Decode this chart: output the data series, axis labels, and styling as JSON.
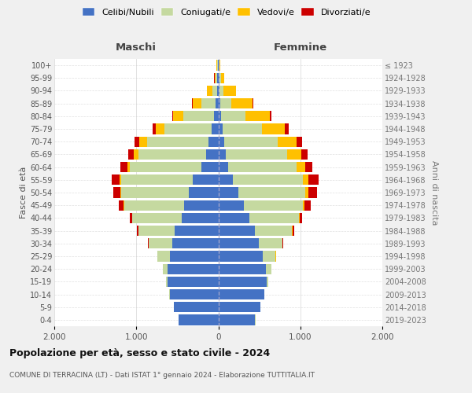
{
  "age_groups": [
    "0-4",
    "5-9",
    "10-14",
    "15-19",
    "20-24",
    "25-29",
    "30-34",
    "35-39",
    "40-44",
    "45-49",
    "50-54",
    "55-59",
    "60-64",
    "65-69",
    "70-74",
    "75-79",
    "80-84",
    "85-89",
    "90-94",
    "95-99",
    "100+"
  ],
  "birth_years": [
    "2019-2023",
    "2014-2018",
    "2009-2013",
    "2004-2008",
    "1999-2003",
    "1994-1998",
    "1989-1993",
    "1984-1988",
    "1979-1983",
    "1974-1978",
    "1969-1973",
    "1964-1968",
    "1959-1963",
    "1954-1958",
    "1949-1953",
    "1944-1948",
    "1939-1943",
    "1934-1938",
    "1929-1933",
    "1924-1928",
    "≤ 1923"
  ],
  "male": {
    "celibi": [
      480,
      540,
      590,
      620,
      620,
      590,
      560,
      530,
      450,
      420,
      360,
      310,
      210,
      150,
      120,
      80,
      50,
      30,
      15,
      10,
      5
    ],
    "coniugati": [
      1,
      2,
      5,
      20,
      60,
      150,
      290,
      440,
      600,
      730,
      820,
      870,
      870,
      820,
      750,
      580,
      380,
      180,
      60,
      20,
      10
    ],
    "vedovi": [
      0,
      0,
      0,
      0,
      0,
      1,
      1,
      2,
      3,
      5,
      10,
      20,
      30,
      60,
      90,
      100,
      120,
      100,
      60,
      15,
      5
    ],
    "divorziati": [
      0,
      0,
      0,
      0,
      1,
      2,
      5,
      20,
      30,
      60,
      90,
      100,
      80,
      70,
      60,
      40,
      15,
      8,
      5,
      3,
      2
    ]
  },
  "female": {
    "nubili": [
      450,
      510,
      560,
      590,
      580,
      540,
      490,
      450,
      380,
      310,
      240,
      180,
      120,
      90,
      70,
      50,
      30,
      20,
      15,
      10,
      5
    ],
    "coniugate": [
      1,
      2,
      5,
      22,
      65,
      160,
      290,
      450,
      600,
      720,
      820,
      850,
      830,
      750,
      650,
      480,
      300,
      140,
      50,
      20,
      8
    ],
    "vedove": [
      0,
      0,
      0,
      0,
      0,
      1,
      2,
      5,
      10,
      20,
      40,
      70,
      110,
      170,
      230,
      280,
      300,
      260,
      150,
      40,
      10
    ],
    "divorziate": [
      0,
      0,
      0,
      0,
      1,
      2,
      5,
      20,
      30,
      80,
      100,
      120,
      90,
      80,
      70,
      50,
      20,
      10,
      5,
      3,
      2
    ]
  },
  "colors": {
    "celibi": "#4472c4",
    "coniugati": "#c5d9a0",
    "vedovi": "#ffc000",
    "divorziati": "#cc0000"
  },
  "legend_labels": [
    "Celibi/Nubili",
    "Coniugati/e",
    "Vedovi/e",
    "Divorziati/e"
  ],
  "legend_colors": [
    "#4472c4",
    "#c5d9a0",
    "#ffc000",
    "#cc0000"
  ],
  "title": "Popolazione per età, sesso e stato civile - 2024",
  "subtitle": "COMUNE DI TERRACINA (LT) - Dati ISTAT 1° gennaio 2024 - Elaborazione TUTTITALIA.IT",
  "xlabel_left": "Maschi",
  "xlabel_right": "Femmine",
  "ylabel_left": "Fasce di età",
  "ylabel_right": "Anni di nascita",
  "xlim": 2000,
  "bg_color": "#f0f0f0",
  "plot_bg": "#ffffff",
  "grid_color": "#cccccc"
}
